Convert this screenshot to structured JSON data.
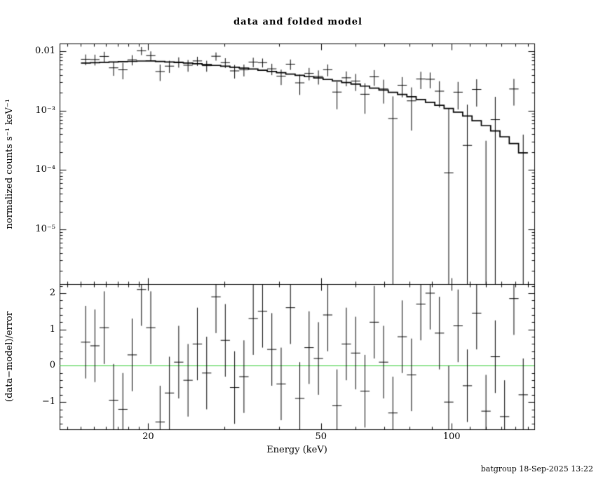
{
  "title": "data and folded model",
  "footer": {
    "timestamp": "batgroup 18-Sep-2025 13:22"
  },
  "chart_data": {
    "type": "scatter",
    "subtype": "xspec data and folded model with residual panel",
    "title": "data and folded model",
    "line_color": "#000000",
    "x_axis": {
      "label": "Energy (keV)",
      "scale": "log",
      "min": 12.5,
      "max": 155,
      "ticks": [
        {
          "value": 20,
          "label": "20"
        },
        {
          "value": 50,
          "label": "50"
        },
        {
          "value": 100,
          "label": "100"
        }
      ],
      "minor_ticks": [
        13,
        14,
        15,
        16,
        17,
        18,
        19,
        30,
        40,
        60,
        70,
        80,
        90,
        110,
        120,
        130,
        140,
        150
      ]
    },
    "top_panel": {
      "ylabel": "normalized counts s⁻¹ keV⁻¹",
      "scale": "log",
      "min": 1.2e-06,
      "max": 0.0135,
      "ticks": [
        {
          "value": 0.01,
          "label": "0.01"
        },
        {
          "value": 0.001,
          "label": "10⁻³"
        },
        {
          "value": 0.0001,
          "label": "10⁻⁴"
        },
        {
          "value": 1e-05,
          "label": "10⁻⁵"
        }
      ]
    },
    "bottom_panel": {
      "ylabel": "(data−model)/error",
      "scale": "linear",
      "min": -1.75,
      "max": 2.25,
      "ticks": [
        {
          "value": 2,
          "label": "2"
        },
        {
          "value": 1,
          "label": "1"
        },
        {
          "value": 0,
          "label": "0"
        },
        {
          "value": -1,
          "label": "−1"
        }
      ],
      "zero_line_color": "#33cc33",
      "residual_error": 1
    },
    "model_curve": {
      "energy": [
        14,
        20,
        25,
        30,
        35,
        40,
        45,
        50,
        60,
        70,
        80,
        90,
        100,
        110,
        120,
        130,
        140,
        150
      ],
      "value": [
        0.0063,
        0.0069,
        0.0063,
        0.0056,
        0.005,
        0.0044,
        0.0039,
        0.0035,
        0.0028,
        0.0022,
        0.00175,
        0.00135,
        0.00105,
        0.00078,
        0.00056,
        0.0004,
        0.00027,
        0.00016
      ]
    },
    "series": {
      "bin_edges": [
        14.0,
        14.71,
        15.45,
        16.24,
        17.06,
        17.92,
        18.83,
        19.78,
        20.78,
        21.84,
        22.94,
        24.1,
        25.32,
        26.61,
        27.95,
        29.37,
        30.85,
        32.42,
        34.06,
        35.78,
        37.59,
        39.49,
        41.49,
        43.59,
        45.8,
        48.12,
        50.56,
        53.11,
        55.8,
        58.63,
        61.6,
        64.71,
        67.99,
        71.43,
        75.05,
        78.85,
        82.84,
        87.03,
        91.44,
        96.06,
        100.93,
        106.04,
        111.4,
        117.04,
        122.97,
        129.19,
        135.73,
        142.6,
        149.82
      ],
      "errors": [
        0.0015,
        0.0015,
        0.0016,
        0.0014,
        0.0015,
        0.0014,
        0.0016,
        0.0015,
        0.0014,
        0.0013,
        0.0013,
        0.0013,
        0.0012,
        0.0012,
        0.0013,
        0.0012,
        0.0012,
        0.0011,
        0.0012,
        0.0011,
        0.0011,
        0.0011,
        0.0012,
        0.0011,
        0.001,
        0.001,
        0.0011,
        0.001,
        0.001,
        0.001,
        0.001,
        0.0011,
        0.001,
        0.001,
        0.001,
        0.001,
        0.0011,
        0.001,
        0.001,
        0.001,
        0.001,
        0.001,
        0.0011,
        0.001,
        0.001,
        0.001,
        0.0011,
        0.001
      ],
      "residuals": [
        0.65,
        0.55,
        1.05,
        -0.95,
        -1.2,
        0.3,
        2.1,
        1.05,
        -1.55,
        -0.75,
        0.1,
        -0.4,
        0.6,
        -0.2,
        1.9,
        0.7,
        -0.6,
        -0.3,
        1.3,
        1.5,
        0.45,
        -0.5,
        1.6,
        -0.9,
        0.5,
        0.2,
        1.4,
        -1.1,
        0.6,
        0.35,
        -0.7,
        1.2,
        0.1,
        -1.3,
        0.8,
        -0.25,
        1.7,
        2.0,
        0.9,
        -1.0,
        1.1,
        -0.55,
        1.45,
        -1.25,
        0.25,
        -1.4,
        1.85,
        -0.8
      ]
    }
  }
}
